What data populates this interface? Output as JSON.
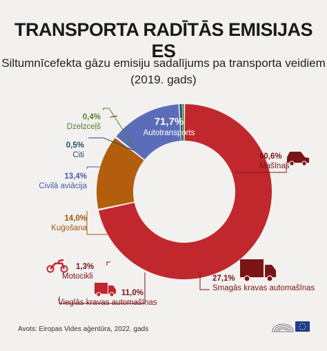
{
  "header": {
    "title": "TRANSPORTA RADĪTĀS EMISIJAS ES",
    "subtitle_line1": "Siltumnīcefekta gāzu emisiju sadalījums pa transporta veidiem",
    "subtitle_line2": "(2019. gads)"
  },
  "chart_data": {
    "type": "pie",
    "title": "TRANSPORTA RADĪTĀS EMISIJAS ES",
    "subtitle": "Siltumnīcefekta gāzu emisiju sadalījums pa transporta veidiem (2019. gads)",
    "slices": [
      {
        "name": "Autotransports",
        "value": 71.7,
        "label": "71,7%",
        "color": "#c0282d"
      },
      {
        "name": "Kuģošana",
        "value": 14.0,
        "label": "14,0%",
        "color": "#b35e0c"
      },
      {
        "name": "Civilā aviācija",
        "value": 13.4,
        "label": "13,4%",
        "color": "#5b6db8"
      },
      {
        "name": "Citi",
        "value": 0.5,
        "label": "0,5%",
        "color": "#1f4e79"
      },
      {
        "name": "Dzelzceļš",
        "value": 0.4,
        "label": "0,4%",
        "color": "#5a8f3c"
      }
    ],
    "road_breakdown": [
      {
        "name": "Mašīnas",
        "value": 60.6,
        "label": "60,6%",
        "icon": "car-icon"
      },
      {
        "name": "Smagās kravas automašīnas",
        "value": 27.1,
        "label": "27,1%",
        "icon": "truck-icon"
      },
      {
        "name": "Vieglās kravas automašīnas",
        "value": 11.0,
        "label": "11,0%",
        "icon": "van-icon"
      },
      {
        "name": "Motocikli",
        "value": 1.3,
        "label": "1,3%",
        "icon": "motorcycle-icon"
      }
    ],
    "colors": {
      "road_text": "#7a1416",
      "road_pct": "#c0282d",
      "ship_text": "#a4550b",
      "air_text": "#4a5aa8",
      "other_text": "#1f4e79",
      "rail_text": "#4e7f31"
    }
  },
  "footer": {
    "source": "Avots: Eiropas Vides aģentūra, 2022. gads"
  }
}
